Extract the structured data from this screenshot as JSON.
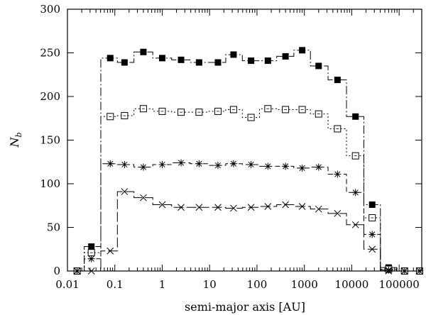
{
  "chart_data": {
    "type": "line",
    "title": "",
    "xlabel": "semi-major axis [AU]",
    "ylabel": "N_b",
    "ylabel_main": "N",
    "ylabel_sub": "b",
    "xscale": "log",
    "xlim": [
      0.01,
      300000
    ],
    "ylim": [
      0,
      300
    ],
    "grid": false,
    "legend": "none",
    "x_ticks": [
      0.01,
      0.1,
      1,
      10,
      100,
      1000,
      10000,
      100000
    ],
    "x_tick_labels": [
      "0.01",
      "0.1",
      "1",
      "10",
      "100",
      "1000",
      "10000",
      "100000"
    ],
    "y_ticks": [
      0,
      50,
      100,
      150,
      200,
      250,
      300
    ],
    "y_tick_labels": [
      "0",
      "50",
      "100",
      "150",
      "200",
      "250",
      "300"
    ],
    "x": [
      0.016,
      0.032,
      0.08,
      0.16,
      0.4,
      1.0,
      2.5,
      6.0,
      15,
      32,
      75,
      170,
      400,
      900,
      2000,
      5000,
      12000,
      27000,
      60000,
      130000,
      270000
    ],
    "series": [
      {
        "name": "filled squares",
        "marker": "filled-square",
        "dash": "12,3,2,3",
        "values": [
          0,
          28,
          244,
          239,
          251,
          244,
          242,
          239,
          239,
          248,
          241,
          241,
          246,
          253,
          235,
          219,
          177,
          76,
          4,
          0,
          0
        ]
      },
      {
        "name": "open squares",
        "marker": "open-square",
        "dash": "2,3",
        "values": [
          0,
          21,
          177,
          178,
          186,
          183,
          182,
          182,
          183,
          185,
          176,
          186,
          185,
          185,
          180,
          163,
          132,
          61,
          2,
          0,
          0
        ]
      },
      {
        "name": "asterisks",
        "marker": "asterisk",
        "dash": "7,4",
        "values": [
          0,
          14,
          123,
          122,
          119,
          122,
          124,
          123,
          121,
          123,
          122,
          120,
          120,
          118,
          119,
          111,
          90,
          42,
          1,
          0,
          0
        ]
      },
      {
        "name": "crosses",
        "marker": "cross",
        "dash": "14,4",
        "values": [
          0,
          0,
          23,
          91,
          84,
          76,
          73,
          73,
          73,
          72,
          73,
          74,
          76,
          74,
          71,
          66,
          53,
          25,
          0,
          0,
          0
        ]
      }
    ]
  }
}
